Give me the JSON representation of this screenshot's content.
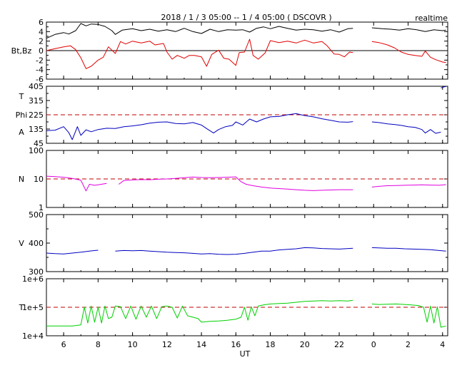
{
  "header": {
    "title": "2018 / 1 / 3  05:00 -- 1 / 4  05:00 ( DSCOVR )",
    "status": "realtime"
  },
  "colors": {
    "bt": "#000000",
    "bz": "#e00000",
    "phi": "#0000c0",
    "density": "#e000e0",
    "speed": "#0000c0",
    "temperature": "#00d000",
    "reference": "#c00000"
  },
  "chart_data": [
    {
      "type": "line",
      "panel": "magnetic-field",
      "ylabel": "Bt,Bz",
      "ylim": [
        -6,
        6
      ],
      "yticks": [
        "6",
        "4",
        "2",
        "0",
        "-2",
        "-4",
        "-6"
      ],
      "series": [
        {
          "color": "black",
          "x": [
            5,
            5.5,
            6,
            6.3,
            6.7,
            7,
            7.3,
            7.6,
            8,
            8.4,
            8.8,
            9,
            9.4,
            10,
            10.5,
            11,
            11.5,
            12,
            12.5,
            13,
            13.5,
            14,
            14.5,
            15,
            15.5,
            16,
            16.4,
            16.8,
            17.2,
            17.6,
            18,
            18.5,
            19,
            19.5,
            20,
            20.5,
            21,
            21.5,
            22,
            22.5,
            22.8
          ],
          "y": [
            2.6,
            3.4,
            3.8,
            3.5,
            4.2,
            5.7,
            5.2,
            5.6,
            5.5,
            5.1,
            4.2,
            3.4,
            4.3,
            4.6,
            4.2,
            4.5,
            4.1,
            4.4,
            4.0,
            4.7,
            4.0,
            3.6,
            4.5,
            4.0,
            4.4,
            4.3,
            4.4,
            3.9,
            4.7,
            5.0,
            4.6,
            5.1,
            4.7,
            4.3,
            4.5,
            4.4,
            4.1,
            4.4,
            3.9,
            4.6,
            4.7
          ]
        },
        {
          "color": "black",
          "x": [
            23.9,
            24.5,
            25,
            25.5,
            26,
            26.5,
            27,
            27.5,
            28,
            28.2
          ],
          "y": [
            4.8,
            4.6,
            4.5,
            4.3,
            4.6,
            4.4,
            4.0,
            4.4,
            4.2,
            4.3
          ]
        },
        {
          "color": "red",
          "x": [
            5,
            5.5,
            6,
            6.4,
            6.7,
            7,
            7.3,
            7.6,
            8,
            8.3,
            8.6,
            9,
            9.3,
            9.6,
            10,
            10.5,
            11,
            11.3,
            11.8,
            12,
            12.3,
            12.6,
            13,
            13.3,
            13.6,
            14,
            14.3,
            14.6,
            15,
            15.3,
            15.6,
            16,
            16.2,
            16.5,
            16.8,
            17,
            17.3,
            17.7,
            18,
            18.5,
            19,
            19.5,
            20,
            20.5,
            21,
            21.3,
            21.7,
            22,
            22.3,
            22.6,
            22.8
          ],
          "y": [
            0.0,
            0.4,
            0.8,
            1.0,
            0.2,
            -1.5,
            -3.8,
            -3.3,
            -2.0,
            -1.4,
            0.8,
            -0.6,
            1.9,
            1.4,
            2.0,
            1.6,
            2.0,
            1.2,
            1.5,
            -0.3,
            -1.8,
            -1.0,
            -1.6,
            -1.0,
            -1.0,
            -1.3,
            -3.3,
            -0.8,
            0.1,
            -1.6,
            -1.8,
            -3.1,
            -0.4,
            -0.3,
            2.4,
            -1.0,
            -1.8,
            -0.5,
            2.1,
            1.7,
            2.0,
            1.6,
            2.2,
            1.6,
            1.9,
            1.0,
            -0.7,
            -0.8,
            -1.3,
            -0.3,
            -0.4
          ]
        },
        {
          "color": "red",
          "x": [
            23.9,
            24.3,
            24.8,
            25.2,
            25.6,
            26,
            26.4,
            26.8,
            27,
            27.3,
            27.6,
            28,
            28.2
          ],
          "y": [
            1.9,
            1.7,
            1.2,
            0.6,
            -0.3,
            -0.8,
            -1.0,
            -1.2,
            -0.1,
            -1.4,
            -1.9,
            -2.4,
            -2.5
          ]
        }
      ]
    },
    {
      "type": "line",
      "panel": "phi-angle",
      "ylabel": [
        "T",
        "Phi",
        "A"
      ],
      "ylim": [
        45,
        405
      ],
      "yticks": [
        "405",
        "315",
        "225",
        "135",
        "45"
      ],
      "reference_line": 225,
      "series": [
        {
          "color": "blue",
          "x": [
            5,
            5.5,
            6,
            6.3,
            6.5,
            6.8,
            7,
            7.3,
            7.6,
            8,
            8.5,
            9,
            9.5,
            10,
            10.5,
            11,
            11.5,
            12,
            12.5,
            13,
            13.5,
            14,
            14.3,
            14.7,
            15,
            15.4,
            15.8,
            16,
            16.4,
            16.8,
            17.2,
            17.6,
            18,
            18.5,
            19,
            19.5,
            20,
            20.5,
            21,
            21.5,
            22,
            22.5,
            22.8
          ],
          "y": [
            125,
            128,
            150,
            112,
            68,
            150,
            95,
            130,
            118,
            132,
            140,
            138,
            150,
            155,
            162,
            172,
            178,
            180,
            170,
            168,
            176,
            160,
            138,
            110,
            132,
            150,
            158,
            180,
            160,
            198,
            180,
            198,
            212,
            214,
            225,
            232,
            220,
            212,
            200,
            190,
            180,
            178,
            182
          ]
        },
        {
          "color": "blue",
          "x": [
            23.9,
            24.3,
            24.8,
            25.2,
            25.6,
            26,
            26.4,
            26.8,
            27,
            27.3,
            27.6,
            27.9
          ],
          "y": [
            180,
            176,
            168,
            164,
            158,
            150,
            146,
            132,
            110,
            132,
            108,
            115
          ]
        },
        {
          "color": "blue",
          "x": [
            27.9,
            28.0,
            28.1,
            28.2
          ],
          "y": [
            395,
            398,
            402,
            403
          ]
        }
      ]
    },
    {
      "type": "line",
      "panel": "density",
      "ylabel": "N",
      "ylim": [
        1,
        100
      ],
      "log": true,
      "yticks": [
        "100",
        "10",
        "1"
      ],
      "reference_line": 10,
      "series": [
        {
          "color": "magenta",
          "x": [
            5,
            5.5,
            6,
            6.5,
            7,
            7.3,
            7.5,
            7.8,
            8,
            8.5,
            8.9,
            9.2,
            9.5,
            10,
            10.5,
            11,
            11.5,
            12,
            12.5,
            13,
            13.5,
            14,
            14.5,
            15,
            15.5,
            16,
            16.3,
            16.6,
            17,
            17.5,
            18,
            18.5,
            19,
            19.5,
            20,
            20.5,
            21,
            21.5,
            22,
            22.8
          ],
          "y": [
            12.5,
            12.0,
            11.5,
            10.5,
            9.0,
            3.8,
            6.5,
            6.0,
            6.2,
            7.0,
            null,
            6.5,
            8.8,
            9.2,
            9.5,
            9.4,
            9.8,
            10.0,
            10.5,
            11.0,
            11.6,
            11.2,
            11.0,
            11.2,
            11.5,
            11.8,
            8.0,
            6.5,
            5.8,
            5.2,
            4.8,
            4.6,
            4.4,
            4.2,
            4.0,
            3.9,
            4.0,
            4.1,
            4.2,
            4.2
          ]
        },
        {
          "color": "magenta",
          "x": [
            23.9,
            24.3,
            24.8,
            25.3,
            25.8,
            26.3,
            26.8,
            27.3,
            27.8,
            28.2
          ],
          "y": [
            5.2,
            5.5,
            5.8,
            5.9,
            6.0,
            6.1,
            6.2,
            6.1,
            6.0,
            6.3
          ]
        }
      ]
    },
    {
      "type": "line",
      "panel": "speed",
      "ylabel": "V",
      "ylim": [
        300,
        500
      ],
      "yticks": [
        "500",
        "400",
        "300"
      ],
      "series": [
        {
          "color": "blue",
          "x": [
            5,
            5.5,
            6,
            6.5,
            7,
            7.5,
            8,
            8.5,
            9,
            9.5,
            10,
            10.5,
            11,
            11.5,
            12,
            12.5,
            13,
            13.5,
            14,
            14.5,
            15,
            15.5,
            16,
            16.5,
            17,
            17.5,
            18,
            18.5,
            19,
            19.5,
            20,
            20.5,
            21,
            21.5,
            22,
            22.8
          ],
          "y": [
            365,
            363,
            362,
            365,
            368,
            372,
            375,
            null,
            372,
            374,
            373,
            374,
            372,
            370,
            368,
            367,
            366,
            364,
            362,
            363,
            361,
            360,
            361,
            364,
            368,
            372,
            372,
            376,
            378,
            380,
            384,
            383,
            381,
            380,
            379,
            382
          ]
        },
        {
          "color": "blue",
          "x": [
            23.9,
            24.3,
            24.8,
            25.3,
            25.8,
            26.3,
            26.8,
            27.3,
            27.8,
            28.2
          ],
          "y": [
            384,
            383,
            382,
            382,
            380,
            379,
            378,
            377,
            374,
            372
          ]
        }
      ]
    },
    {
      "type": "line",
      "panel": "temperature",
      "ylabel": "T",
      "ylim": [
        10000,
        1000000
      ],
      "log": true,
      "yticks": [
        "1e+6",
        "1e+5",
        "1e+4"
      ],
      "reference_line": 100000,
      "series": [
        {
          "color": "green",
          "x": [
            5,
            5.5,
            6,
            6.5,
            7,
            7.2,
            7.4,
            7.6,
            7.8,
            8,
            8.2,
            8.4,
            8.6,
            8.8,
            9,
            9.3,
            9.6,
            9.9,
            10.2,
            10.5,
            10.8,
            11.1,
            11.4,
            11.7,
            12,
            12.3,
            12.6,
            12.9,
            13.2,
            13.5,
            13.8,
            14,
            14.5,
            15,
            15.5,
            16,
            16.3,
            16.5,
            16.7,
            16.9,
            17.1,
            17.3,
            17.6,
            18,
            18.5,
            19,
            19.5,
            20,
            20.5,
            21,
            21.5,
            22,
            22.5,
            22.8
          ],
          "y": [
            22000,
            22000,
            22000,
            22000,
            24000,
            100000,
            28000,
            110000,
            30000,
            100000,
            28000,
            110000,
            40000,
            45000,
            110000,
            105000,
            40000,
            110000,
            38000,
            110000,
            45000,
            110000,
            40000,
            105000,
            110000,
            100000,
            42000,
            110000,
            50000,
            45000,
            40000,
            30000,
            32000,
            33000,
            35000,
            38000,
            45000,
            100000,
            35000,
            105000,
            50000,
            110000,
            120000,
            130000,
            135000,
            140000,
            150000,
            160000,
            165000,
            170000,
            165000,
            170000,
            165000,
            175000
          ]
        },
        {
          "color": "green",
          "x": [
            23.9,
            24.3,
            24.8,
            25.3,
            25.8,
            26.2,
            26.6,
            26.9,
            27.1,
            27.3,
            27.5,
            27.7,
            27.9,
            28.2
          ],
          "y": [
            130000,
            125000,
            128000,
            130000,
            125000,
            120000,
            115000,
            100000,
            30000,
            110000,
            28000,
            105000,
            20000,
            22000
          ]
        }
      ]
    }
  ],
  "x_axis": {
    "label": "UT",
    "range": [
      5,
      28.3
    ],
    "ticks": [
      "6",
      "8",
      "10",
      "12",
      "14",
      "16",
      "18",
      "20",
      "22",
      "0",
      "2",
      "4"
    ]
  }
}
